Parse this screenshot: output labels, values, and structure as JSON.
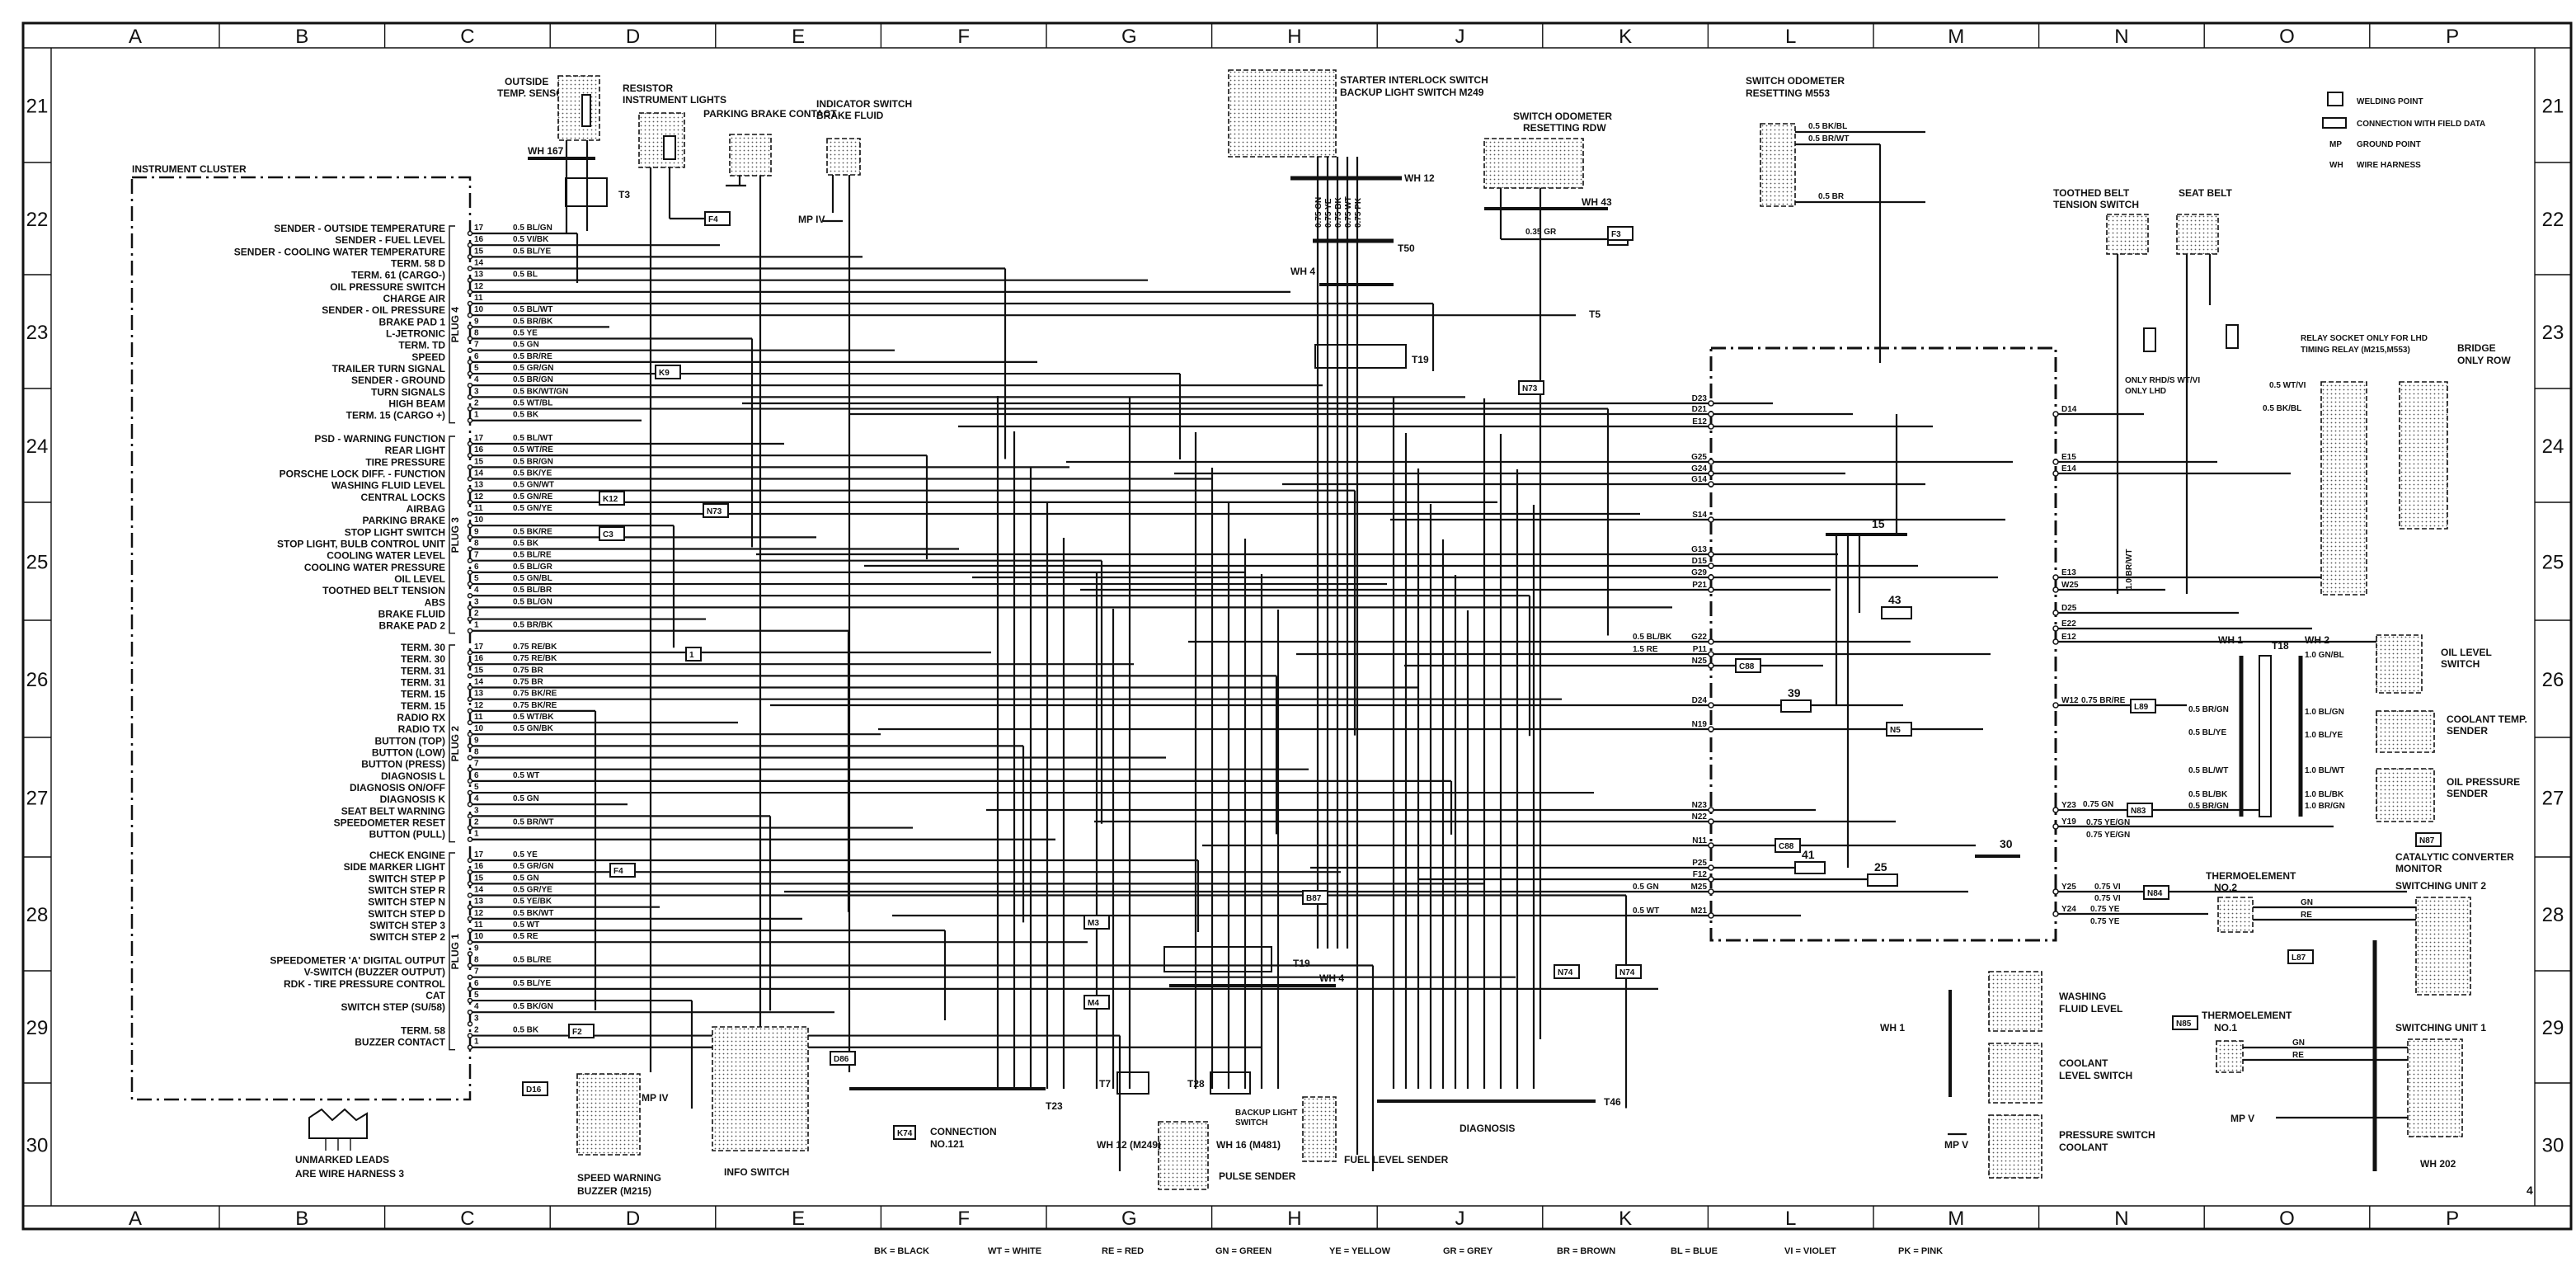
{
  "grid": {
    "columns": [
      "A",
      "B",
      "C",
      "D",
      "E",
      "F",
      "G",
      "H",
      "J",
      "K",
      "L",
      "M",
      "N",
      "O",
      "P"
    ],
    "rows": [
      "21",
      "22",
      "23",
      "24",
      "25",
      "26",
      "27",
      "28",
      "29",
      "30"
    ]
  },
  "page_number": "4",
  "legend": {
    "welding_point": "WELDING POINT",
    "connection": "CONNECTION WITH FIELD DATA",
    "mp_abbr": "MP",
    "mp_text": "GROUND POINT",
    "wh_abbr": "WH",
    "wh_text": "WIRE HARNESS"
  },
  "color_codes": [
    "BK = BLACK",
    "WT = WHITE",
    "RE = RED",
    "GN = GREEN",
    "YE = YELLOW",
    "GR = GREY",
    "BR = BROWN",
    "BL = BLUE",
    "VI = VIOLET",
    "PK = PINK"
  ],
  "instrument_cluster": {
    "title": "INSTRUMENT CLUSTER",
    "plugs": [
      {
        "name": "PLUG 4",
        "pins": [
          {
            "num": "17",
            "label": "SENDER - OUTSIDE TEMPERATURE",
            "wire": "0.5 BL/GN"
          },
          {
            "num": "16",
            "label": "SENDER - FUEL LEVEL",
            "wire": "0.5 VI/BK"
          },
          {
            "num": "15",
            "label": "SENDER - COOLING WATER TEMPERATURE",
            "wire": "0.5 BL/YE"
          },
          {
            "num": "14",
            "label": "TERM. 58 D",
            "wire": ""
          },
          {
            "num": "13",
            "label": "TERM. 61 (CARGO-)",
            "wire": "0.5 BL"
          },
          {
            "num": "12",
            "label": "OIL PRESSURE SWITCH",
            "wire": ""
          },
          {
            "num": "11",
            "label": "CHARGE AIR",
            "wire": ""
          },
          {
            "num": "10",
            "label": "SENDER - OIL PRESSURE",
            "wire": "0.5 BL/WT"
          },
          {
            "num": "9",
            "label": "BRAKE PAD 1",
            "wire": "0.5 BR/BK"
          },
          {
            "num": "8",
            "label": "L-JETRONIC",
            "wire": "0.5 YE"
          },
          {
            "num": "7",
            "label": "TERM. TD",
            "wire": "0.5 GN"
          },
          {
            "num": "6",
            "label": "SPEED",
            "wire": "0.5 BR/RE"
          },
          {
            "num": "5",
            "label": "TRAILER TURN SIGNAL",
            "wire": "0.5 GR/GN"
          },
          {
            "num": "4",
            "label": "SENDER - GROUND",
            "wire": "0.5 BR/GN"
          },
          {
            "num": "3",
            "label": "TURN SIGNALS",
            "wire": "0.5 BK/WT/GN"
          },
          {
            "num": "2",
            "label": "HIGH BEAM",
            "wire": "0.5 WT/BL"
          },
          {
            "num": "1",
            "label": "TERM. 15 (CARGO +)",
            "wire": "0.5 BK"
          }
        ]
      },
      {
        "name": "PLUG 3",
        "pins": [
          {
            "num": "17",
            "label": "PSD - WARNING FUNCTION",
            "wire": "0.5 BL/WT"
          },
          {
            "num": "16",
            "label": "REAR LIGHT",
            "wire": "0.5 WT/RE"
          },
          {
            "num": "15",
            "label": "TIRE PRESSURE",
            "wire": "0.5 BR/GN"
          },
          {
            "num": "14",
            "label": "PORSCHE LOCK DIFF. - FUNCTION",
            "wire": "0.5 BK/YE"
          },
          {
            "num": "13",
            "label": "WASHING FLUID LEVEL",
            "wire": "0.5 GN/WT"
          },
          {
            "num": "12",
            "label": "CENTRAL LOCKS",
            "wire": "0.5 GN/RE"
          },
          {
            "num": "11",
            "label": "AIRBAG",
            "wire": "0.5 GN/YE"
          },
          {
            "num": "10",
            "label": "PARKING BRAKE",
            "wire": ""
          },
          {
            "num": "9",
            "label": "STOP LIGHT SWITCH",
            "wire": "0.5 BK/RE"
          },
          {
            "num": "8",
            "label": "STOP LIGHT, BULB CONTROL UNIT",
            "wire": "0.5 BK"
          },
          {
            "num": "7",
            "label": "COOLING WATER LEVEL",
            "wire": "0.5 BL/RE"
          },
          {
            "num": "6",
            "label": "COOLING WATER PRESSURE",
            "wire": "0.5 BL/GR"
          },
          {
            "num": "5",
            "label": "OIL LEVEL",
            "wire": "0.5 GN/BL"
          },
          {
            "num": "4",
            "label": "TOOTHED BELT TENSION",
            "wire": "0.5 BL/BR"
          },
          {
            "num": "3",
            "label": "ABS",
            "wire": "0.5 BL/GN"
          },
          {
            "num": "2",
            "label": "BRAKE FLUID",
            "wire": ""
          },
          {
            "num": "1",
            "label": "BRAKE PAD 2",
            "wire": "0.5 BR/BK"
          }
        ]
      },
      {
        "name": "PLUG 2",
        "pins": [
          {
            "num": "17",
            "label": "TERM. 30",
            "wire": "0.75 RE/BK"
          },
          {
            "num": "16",
            "label": "TERM. 30",
            "wire": "0.75 RE/BK"
          },
          {
            "num": "15",
            "label": "TERM. 31",
            "wire": "0.75 BR"
          },
          {
            "num": "14",
            "label": "TERM. 31",
            "wire": "0.75 BR"
          },
          {
            "num": "13",
            "label": "TERM. 15",
            "wire": "0.75 BK/RE"
          },
          {
            "num": "12",
            "label": "TERM. 15",
            "wire": "0.75 BK/RE"
          },
          {
            "num": "11",
            "label": "RADIO RX",
            "wire": "0.5 WT/BK"
          },
          {
            "num": "10",
            "label": "RADIO TX",
            "wire": "0.5 GN/BK"
          },
          {
            "num": "9",
            "label": "BUTTON (TOP)",
            "wire": ""
          },
          {
            "num": "8",
            "label": "BUTTON (LOW)",
            "wire": ""
          },
          {
            "num": "7",
            "label": "BUTTON (PRESS)",
            "wire": ""
          },
          {
            "num": "6",
            "label": "DIAGNOSIS L",
            "wire": "0.5 WT"
          },
          {
            "num": "5",
            "label": "DIAGNOSIS ON/OFF",
            "wire": ""
          },
          {
            "num": "4",
            "label": "DIAGNOSIS K",
            "wire": "0.5 GN"
          },
          {
            "num": "3",
            "label": "SEAT BELT WARNING",
            "wire": ""
          },
          {
            "num": "2",
            "label": "SPEEDOMETER RESET",
            "wire": "0.5 BR/WT"
          },
          {
            "num": "1",
            "label": "BUTTON (PULL)",
            "wire": ""
          }
        ]
      },
      {
        "name": "PLUG 1",
        "pins": [
          {
            "num": "17",
            "label": "CHECK ENGINE",
            "wire": "0.5 YE"
          },
          {
            "num": "16",
            "label": "SIDE MARKER LIGHT",
            "wire": "0.5 GR/GN"
          },
          {
            "num": "15",
            "label": "SWITCH STEP P",
            "wire": "0.5 GN"
          },
          {
            "num": "14",
            "label": "SWITCH STEP R",
            "wire": "0.5 GR/YE"
          },
          {
            "num": "13",
            "label": "SWITCH STEP N",
            "wire": "0.5 YE/BK"
          },
          {
            "num": "12",
            "label": "SWITCH STEP D",
            "wire": "0.5 BK/WT"
          },
          {
            "num": "11",
            "label": "SWITCH STEP 3",
            "wire": "0.5 WT"
          },
          {
            "num": "10",
            "label": "SWITCH STEP 2",
            "wire": "0.5 RE"
          },
          {
            "num": "9",
            "label": "",
            "wire": ""
          },
          {
            "num": "8",
            "label": "SPEEDOMETER 'A' DIGITAL OUTPUT",
            "wire": "0.5 BL/RE"
          },
          {
            "num": "7",
            "label": "V-SWITCH (BUZZER OUTPUT)",
            "wire": ""
          },
          {
            "num": "6",
            "label": "RDK - TIRE PRESSURE CONTROL",
            "wire": "0.5 BL/YE"
          },
          {
            "num": "5",
            "label": "CAT",
            "wire": ""
          },
          {
            "num": "4",
            "label": "SWITCH STEP (SU/58)",
            "wire": "0.5 BK/GN"
          },
          {
            "num": "3",
            "label": "",
            "wire": ""
          },
          {
            "num": "2",
            "label": "TERM. 58",
            "wire": "0.5 BK"
          },
          {
            "num": "1",
            "label": "BUZZER CONTACT",
            "wire": ""
          }
        ]
      }
    ]
  },
  "components": {
    "outside_temp_sensor": [
      "OUTSIDE",
      "TEMP. SENSOR"
    ],
    "wh167": "WH 167",
    "t3": "T3",
    "resistor": [
      "RESISTOR",
      "INSTRUMENT LIGHTS"
    ],
    "parking_brake": "PARKING BRAKE CONTACT",
    "indicator_switch": [
      "INDICATOR SWITCH",
      "BRAKE FLUID"
    ],
    "mp_iv": "MP IV",
    "starter": [
      "STARTER INTERLOCK SWITCH",
      "BACKUP LIGHT SWITCH M249"
    ],
    "starter_wires": [
      "0.75 GN",
      "0.75 YE",
      "0.75 BK",
      "0.75 WT",
      "0.75 PK"
    ],
    "wh12": "WH 12",
    "t50": "T50",
    "wh4": "WH 4",
    "t19": "T19",
    "odometer_rdw": [
      "SWITCH ODOMETER",
      "RESETTING RDW"
    ],
    "wh43": "WH 43",
    "odometer_rdw_wire": "0.35 GR",
    "t5": "T5",
    "odometer_m553": [
      "SWITCH ODOMETER",
      "RESETTING M553"
    ],
    "odometer_m553_wires": [
      "0.5 BK/BL",
      "0.5 BR/WT",
      "0.5 BR"
    ],
    "toothed_belt": [
      "TOOTHED BELT",
      "TENSION SWITCH"
    ],
    "seat_belt": "SEAT BELT",
    "only_rhd": "ONLY RHD/S WT/VI",
    "only_lhd": "ONLY LHD",
    "relay_socket": [
      "RELAY SOCKET ONLY FOR LHD",
      "TIMING RELAY (M215,M553)"
    ],
    "relay_wires": [
      "0.5 WT/VI",
      "0.5 BK/BL"
    ],
    "bridge": [
      "BRIDGE",
      "ONLY ROW"
    ],
    "oil_level_switch": [
      "OIL LEVEL",
      "SWITCH"
    ],
    "coolant_temp_sender": [
      "COOLANT TEMP.",
      "SENDER"
    ],
    "oil_pressure_sender": [
      "OIL PRESSURE",
      "SENDER"
    ],
    "t18": "T18",
    "wh1": "WH 1",
    "wh2": "WH 2",
    "t18_left_wires": [
      "0.5 BR/GN",
      "0.5 BL/YE",
      "0.5 BL/WT",
      "0.5 BL/BK",
      "0.5 BR/GN"
    ],
    "t18_right_wires": [
      "1.0 GN/BL",
      "1.0 BL/GN",
      "1.0 BL/YE",
      "1.0 BL/WT",
      "1.0 BL/BK",
      "1.0 BR/GN"
    ],
    "cat_monitor": [
      "CATALYTIC CONVERTER",
      "MONITOR"
    ],
    "switching_unit_2": "SWITCHING UNIT 2",
    "switching_unit_1": "SWITCHING UNIT 1",
    "thermo_2": [
      "THERMOELEMENT",
      "NO.2"
    ],
    "thermo_1": [
      "THERMOELEMENT",
      "NO.1"
    ],
    "thermo_wires": [
      "GN",
      "RE"
    ],
    "wh202": "WH 202",
    "mp_v": "MP V",
    "washing_fluid": [
      "WASHING",
      "FLUID LEVEL"
    ],
    "coolant_level": [
      "COOLANT",
      "LEVEL SWITCH"
    ],
    "pressure_switch": [
      "PRESSURE SWITCH",
      "COOLANT"
    ],
    "t7": "T7",
    "t28": "T28",
    "backup_light": [
      "BACKUP LIGHT",
      "SWITCH"
    ],
    "wh12_m249": "WH 12 (M249)",
    "wh16_m481": "WH 16 (M481)",
    "pulse_sender": "PULSE SENDER",
    "fuel_level_sender": "FUEL LEVEL SENDER",
    "diagnosis": "DIAGNOSIS",
    "t46": "T46",
    "t23": "T23",
    "k74": "K74",
    "connection_121": [
      "CONNECTION",
      "NO.121"
    ],
    "info_switch": "INFO SWITCH",
    "speed_buzzer": [
      "SPEED WARNING",
      "BUZZER (M215)"
    ],
    "unmarked_leads": [
      "UNMARKED LEADS",
      "ARE WIRE HARNESS 3"
    ]
  },
  "markers": [
    "K9",
    "K12",
    "C3",
    "N73",
    "F4",
    "F2",
    "D16",
    "F4",
    "1",
    "D86",
    "M3",
    "M4",
    "B87",
    "N5",
    "C88",
    "C88",
    "L89",
    "N83",
    "N84",
    "N87",
    "L87",
    "N85",
    "N73",
    "N74",
    "N74",
    "F3"
  ],
  "control_unit": {
    "left_pins": [
      "D23",
      "D21",
      "E12",
      "G25",
      "G24",
      "G14",
      "S14",
      "G13",
      "D15",
      "G29",
      "P21",
      "G22",
      "P11",
      "N25",
      "D24",
      "N19",
      "N23",
      "N22",
      "N11",
      "P25",
      "F12",
      "M25",
      "M21"
    ],
    "right_pins": [
      "D14",
      "E15",
      "E14",
      "E13",
      "W25",
      "D25",
      "E22",
      "E12",
      "W12",
      "Y23",
      "Y19",
      "Y25",
      "Y24"
    ],
    "left_wires": [
      "0.5 BL/BK",
      "1.5 RE",
      "0.5 GN",
      "0.5 WT"
    ],
    "right_wires": [
      "1.0 BR/WT",
      "0.75 BR/RE",
      "0.75 GN",
      "0.75 YE/GN",
      "0.75 YE/GN",
      "0.75 VI",
      "0.75 VI",
      "0.75 YE",
      "0.75 YE"
    ],
    "fuses": [
      "15",
      "43",
      "39",
      "41",
      "25",
      "30"
    ]
  }
}
